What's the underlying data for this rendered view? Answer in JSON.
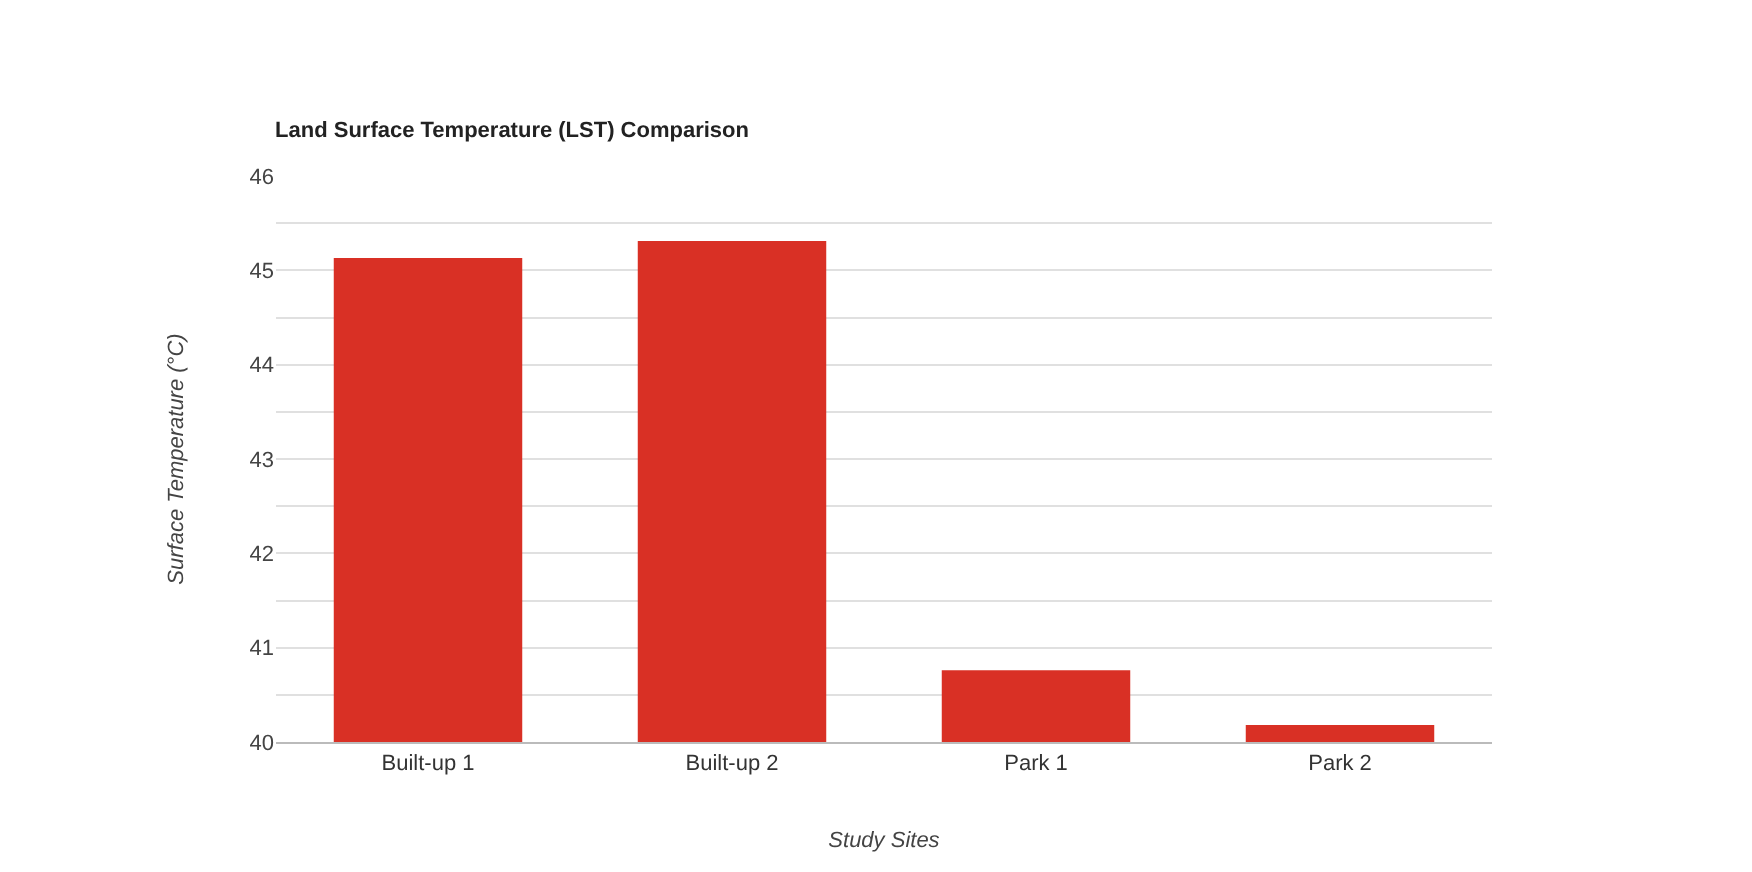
{
  "chart_data": {
    "type": "bar",
    "title": "Land Surface Temperature (LST) Comparison",
    "xlabel": "Study Sites",
    "ylabel": "Surface Temperature (°C)",
    "categories": [
      "Built-up 1",
      "Built-up 2",
      "Park 1",
      "Park 2"
    ],
    "values": [
      45.13,
      45.31,
      40.76,
      40.18
    ],
    "color": "#d93025",
    "ylim": [
      40,
      46
    ],
    "yticks": [
      40,
      {
        "value": 40.5,
        "label": null
      },
      41,
      {
        "value": 41.5,
        "label": null
      },
      42,
      {
        "value": 42.5,
        "label": null
      },
      43,
      {
        "value": 43.5,
        "label": null
      },
      44,
      {
        "value": 44.5,
        "label": null
      },
      45,
      {
        "value": 45.5,
        "label": null
      },
      46
    ],
    "grid": "y"
  }
}
